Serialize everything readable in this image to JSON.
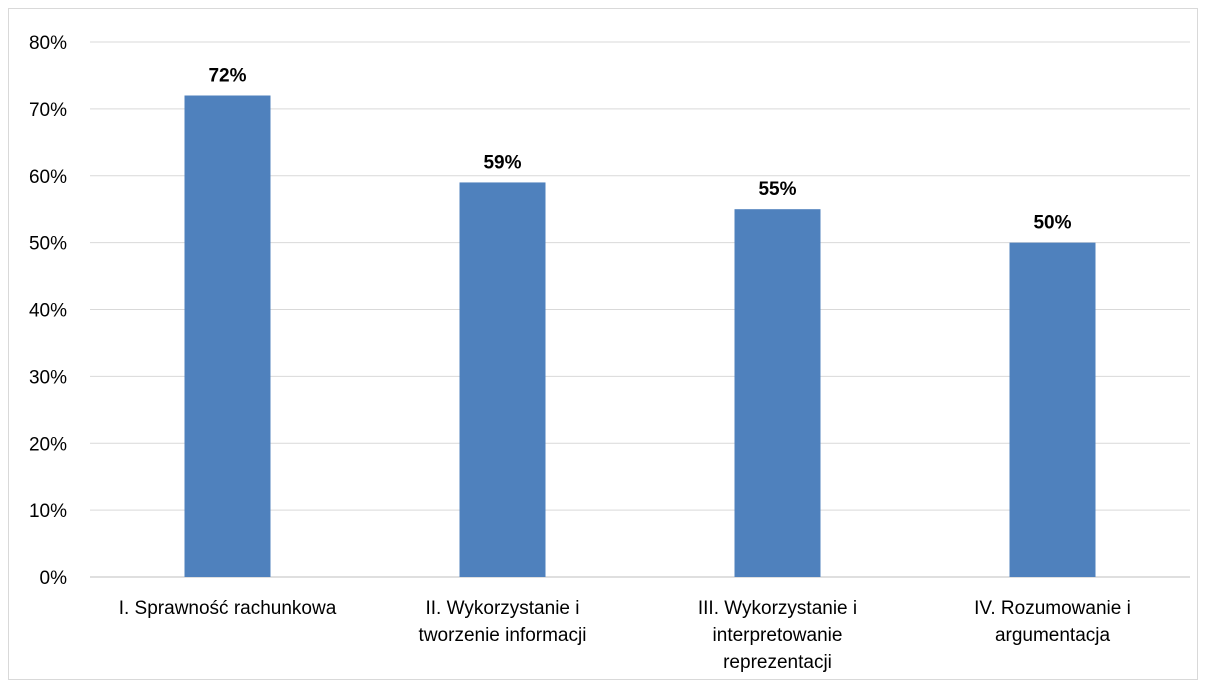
{
  "chart_data": {
    "type": "bar",
    "categories": [
      [
        "I. Sprawność rachunkowa"
      ],
      [
        "II. Wykorzystanie i",
        "tworzenie informacji"
      ],
      [
        "III. Wykorzystanie i",
        "interpretowanie",
        "reprezentacji"
      ],
      [
        "IV. Rozumowanie i",
        "argumentacja"
      ]
    ],
    "values": [
      72,
      59,
      55,
      50
    ],
    "data_labels": [
      "72%",
      "59%",
      "55%",
      "50%"
    ],
    "ylim": [
      0,
      80
    ],
    "yticks": [
      0,
      10,
      20,
      30,
      40,
      50,
      60,
      70,
      80
    ],
    "ytick_labels": [
      "0%",
      "10%",
      "20%",
      "30%",
      "40%",
      "50%",
      "60%",
      "70%",
      "80%"
    ],
    "title": "",
    "xlabel": "",
    "ylabel": "",
    "grid": true,
    "legend": "none",
    "colors": {
      "bar": "#4f81bd",
      "grid": "#d9d9d9",
      "axis": "#bfbfbf"
    }
  }
}
